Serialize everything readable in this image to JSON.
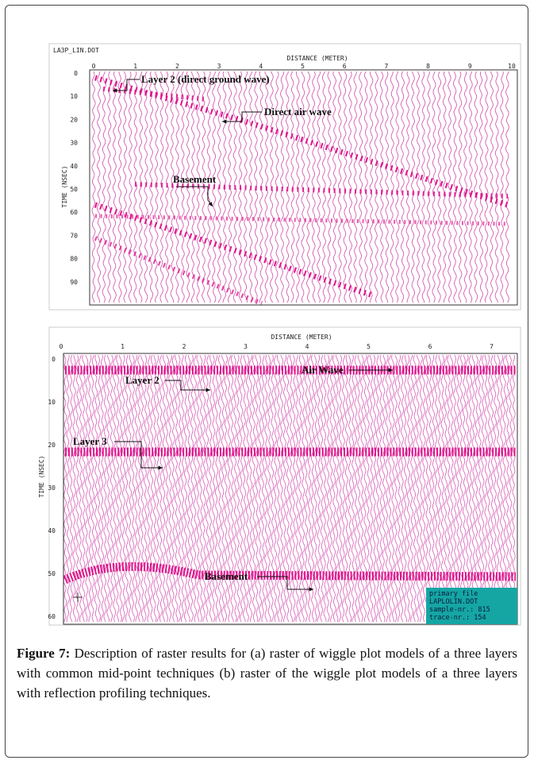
{
  "figure_a": {
    "title": "LA3P_LIN.DOT",
    "x_label": "DISTANCE (METER)",
    "y_label": "TIME (NSEC)",
    "x_ticks": [
      0,
      1,
      2,
      3,
      4,
      5,
      6,
      7,
      8,
      9,
      10
    ],
    "y_ticks": [
      0,
      10,
      20,
      30,
      40,
      50,
      60,
      70,
      80,
      90
    ],
    "annotations": [
      "Layer  2 (direct ground wave)",
      "Direct air wave",
      "Basement"
    ]
  },
  "figure_b": {
    "x_label": "DISTANCE (METER)",
    "y_label": "TIME (NSEC)",
    "x_ticks": [
      0,
      1,
      2,
      3,
      4,
      5,
      6,
      7
    ],
    "y_ticks": [
      0,
      10,
      20,
      30,
      40,
      50,
      60
    ],
    "annotations": [
      "Air Wave",
      "Layer 2",
      "Layer 3",
      "Basement"
    ],
    "info_box": [
      "primary file",
      "LAPLOLIN.DOT",
      "sample-nr.: 815",
      "trace-nr.: 154"
    ]
  },
  "caption": {
    "label": "Figure 7:",
    "text": "Description of raster results for (a) raster of wiggle plot models of a three layers with common mid-point techniques (b) raster of the wiggle plot models of a three layers with reflection profiling techniques."
  }
}
